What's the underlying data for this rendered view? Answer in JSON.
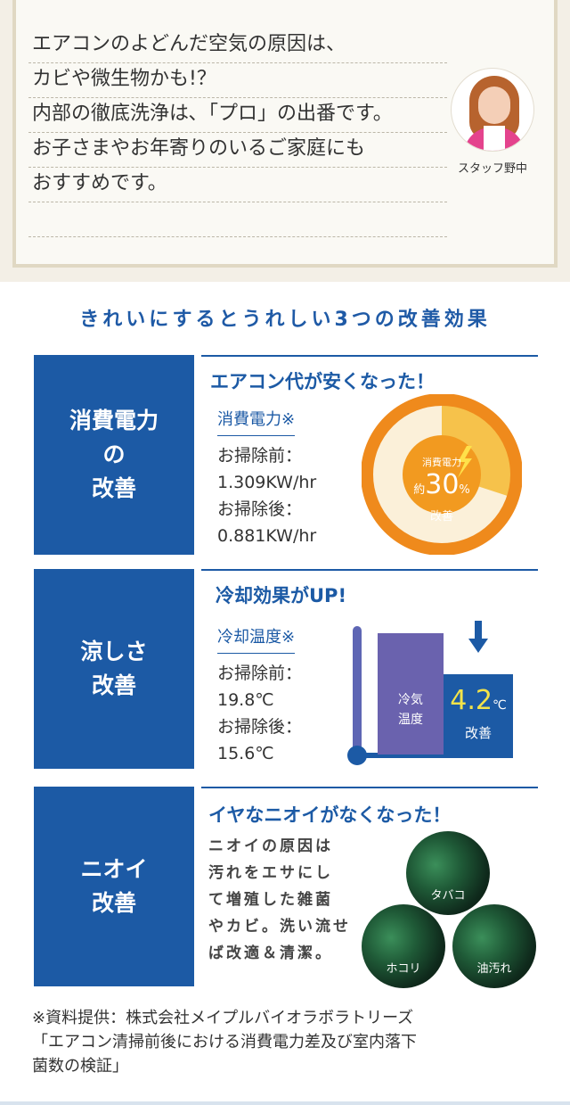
{
  "speech": {
    "lines": [
      "エアコンのよどんだ空気の原因は、",
      "カビや微生物かも!？",
      "内部の徹底洗浄は､「プロ」の出番です。",
      "お子さまやお年寄りのいるご家庭にも",
      "おすすめです。"
    ],
    "staff_name": "スタッフ野中"
  },
  "section_title": "きれいにするとうれしい3つの改善効果",
  "rows": [
    {
      "label_lines": [
        "消費電力",
        "の",
        "改善"
      ],
      "headline": "エアコン代が安くなった！",
      "sub": "消費電力※",
      "before_label": "お掃除前：",
      "before_value": "1.309KW/hr",
      "after_label": "お掃除後：",
      "after_value": "0.881KW/hr",
      "graphic": {
        "label_top": "消費電力",
        "prefix": "約",
        "value": "30",
        "unit": "%",
        "label_bottom": "改善",
        "improvement_percent": 30,
        "colors": {
          "outer": "#ef8a1c",
          "inner": "#f6c24b",
          "center": "#f29a20",
          "base": "#fbf0d9"
        }
      }
    },
    {
      "label_lines": [
        "涼しさ",
        "改善"
      ],
      "headline": "冷却効果がUP!",
      "sub": "冷却温度※",
      "before_label": "お掃除前：",
      "before_value": "19.8℃",
      "after_label": "お掃除後：",
      "after_value": "15.6℃",
      "graphic": {
        "before_label_1": "冷気",
        "before_label_2": "温度",
        "value": "4.2",
        "unit": "℃",
        "label_bottom": "改善"
      }
    },
    {
      "label_lines": [
        "ニオイ",
        "改善"
      ],
      "headline": "イヤなニオイがなくなった！",
      "text_lines": [
        "ニオイの原因は",
        "汚れをエサにし",
        "て増殖した雑菌",
        "やカビ。洗い流せ",
        "ば改適＆清潔。"
      ],
      "circles": [
        "タバコ",
        "ホコリ",
        "油汚れ"
      ]
    }
  ],
  "note_lines": [
    "※資料提供：株式会社メイプルバイオラボラトリーズ",
    "「エアコン清掃前後における消費電力差及び室内落下",
    "菌数の検証」"
  ],
  "colors": {
    "brand_blue": "#1c5aa5",
    "cream": "#faf9f4",
    "border": "#e0d8c3"
  }
}
